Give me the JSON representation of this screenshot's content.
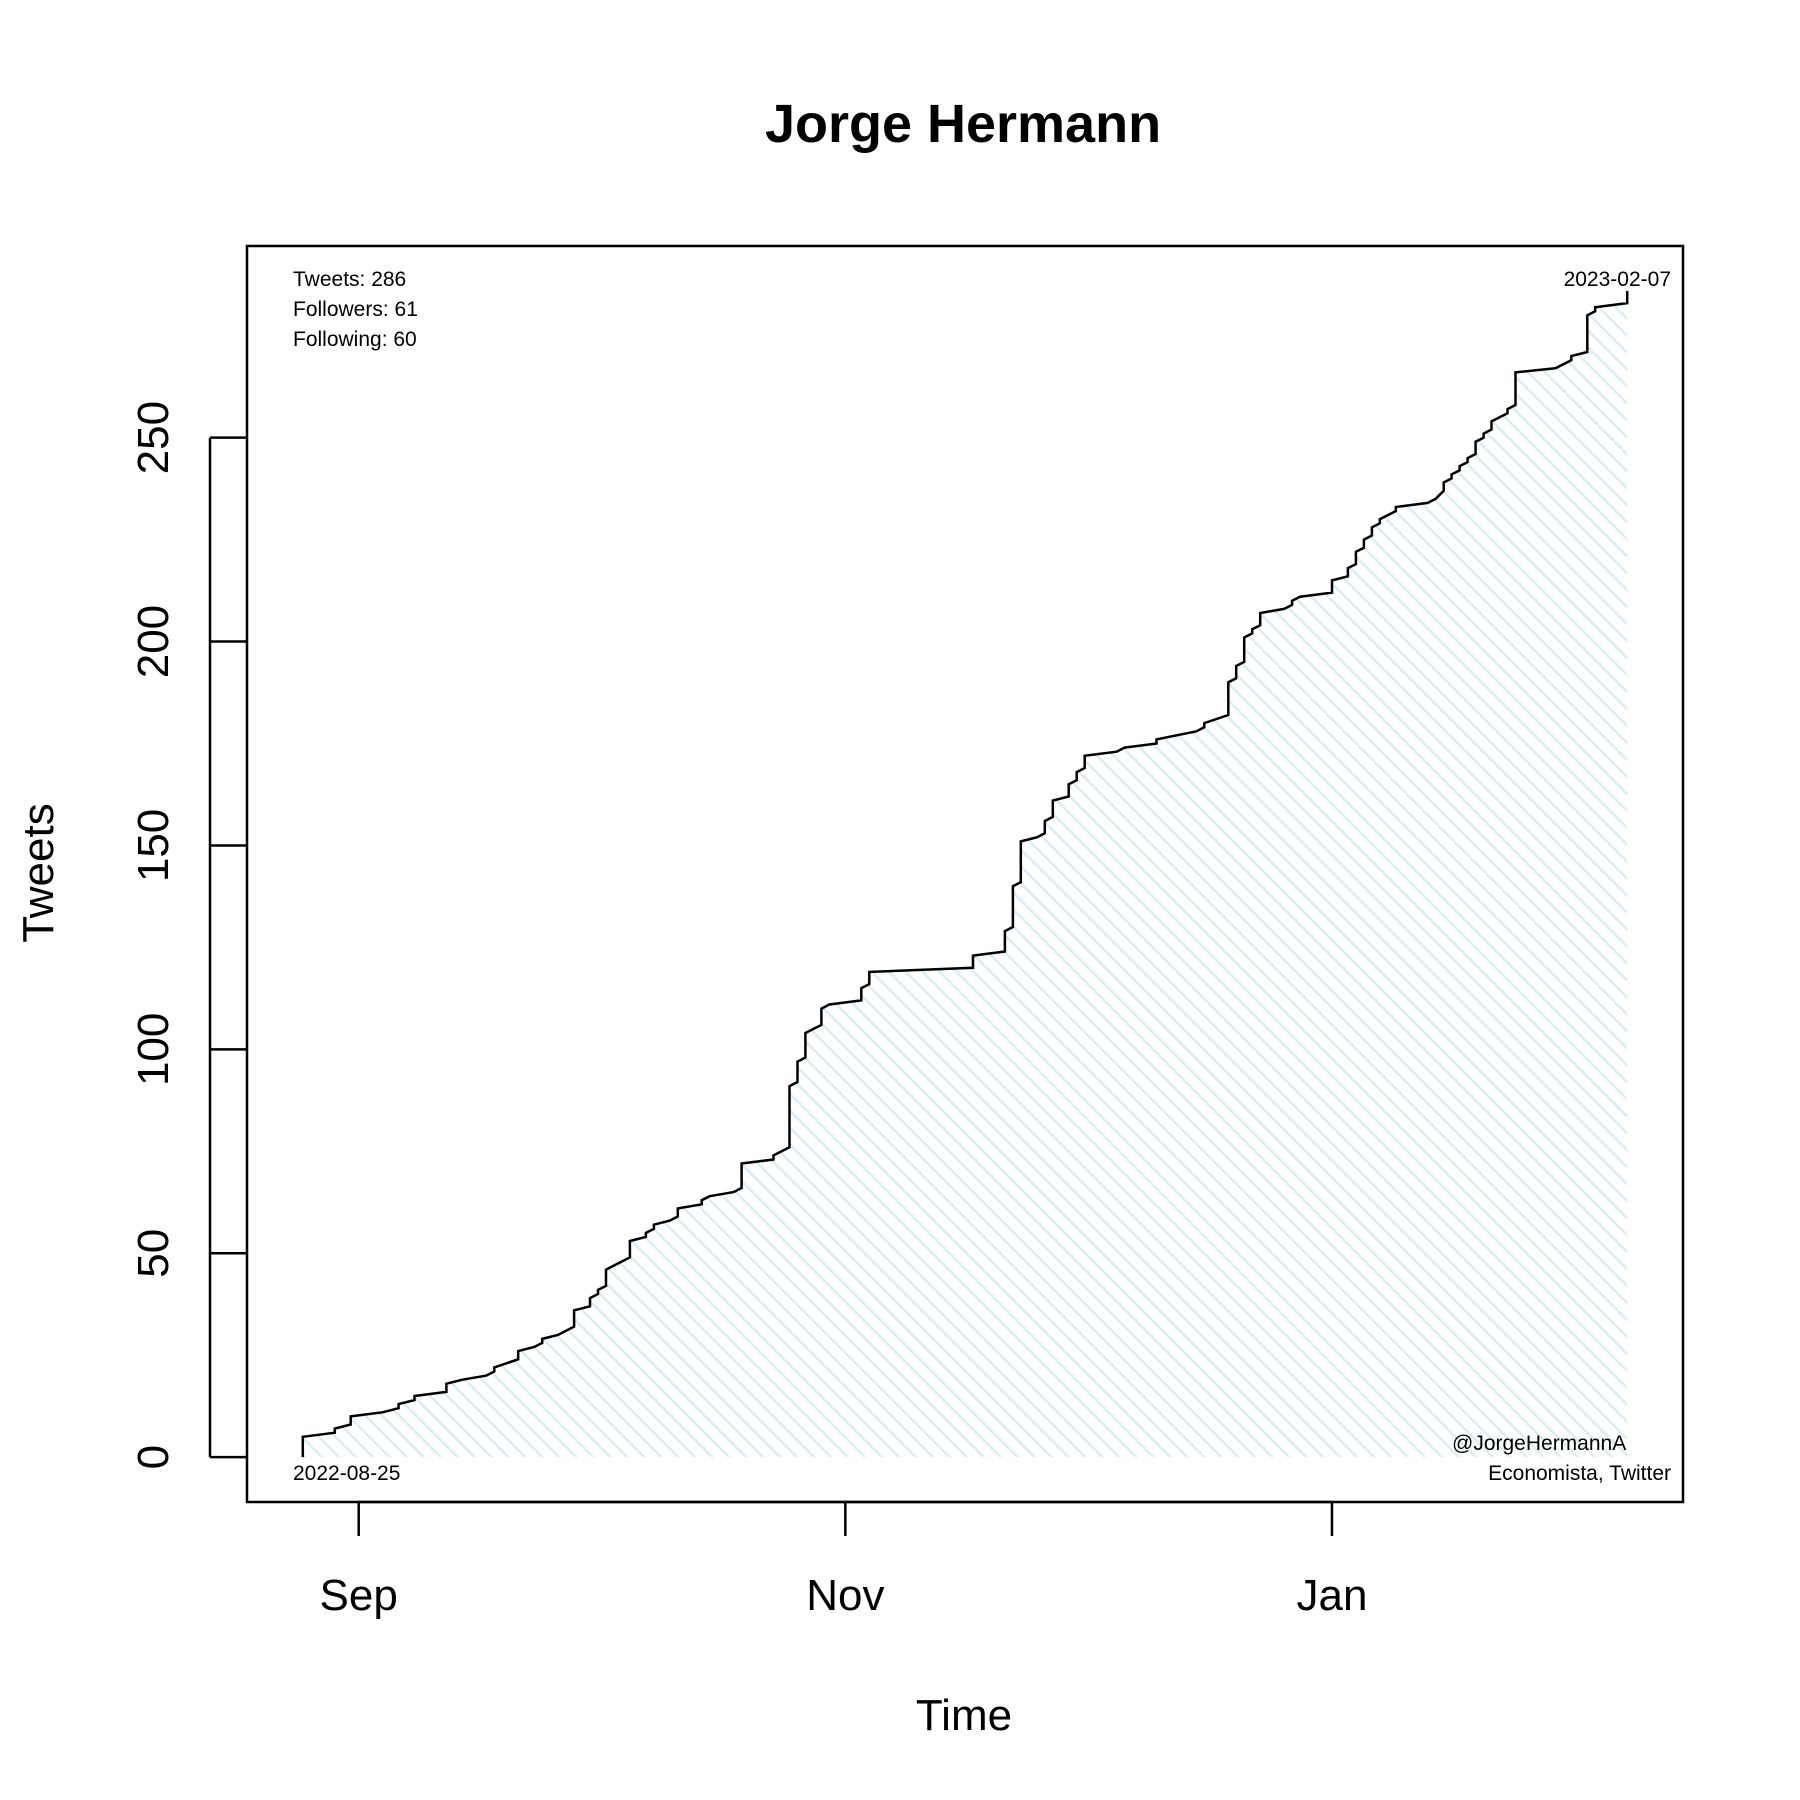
{
  "chart_data": {
    "type": "area",
    "title": "Jorge Hermann",
    "xlabel": "Time",
    "ylabel": "Tweets",
    "x_ticks": [
      {
        "date": "2022-09-01",
        "label": "Sep"
      },
      {
        "date": "2022-11-01",
        "label": "Nov"
      },
      {
        "date": "2023-01-01",
        "label": "Jan"
      }
    ],
    "y_ticks": [
      0,
      50,
      100,
      150,
      200,
      250
    ],
    "xlim": [
      "2022-08-18",
      "2023-02-14"
    ],
    "ylim": [
      -11,
      297
    ],
    "grid": false,
    "fill_color": "#dcecf4",
    "line_color": "#000000",
    "stats": {
      "tweets": "Tweets: 286",
      "followers": "Followers: 61",
      "following": "Following: 60"
    },
    "start_label": "2022-08-25",
    "end_label": "2023-02-07",
    "credit_handle": "@JorgeHermannA",
    "credit_desc": "Economista, Twitter",
    "series": [
      {
        "points": [
          [
            "2022-08-25",
            0
          ],
          [
            "2022-08-25",
            5
          ],
          [
            "2022-08-29",
            6
          ],
          [
            "2022-08-29",
            7
          ],
          [
            "2022-08-31",
            8
          ],
          [
            "2022-08-31",
            10
          ],
          [
            "2022-09-04",
            11
          ],
          [
            "2022-09-06",
            12
          ],
          [
            "2022-09-06",
            13
          ],
          [
            "2022-09-08",
            14
          ],
          [
            "2022-09-08",
            15
          ],
          [
            "2022-09-12",
            16
          ],
          [
            "2022-09-12",
            18
          ],
          [
            "2022-09-14",
            19
          ],
          [
            "2022-09-17",
            20
          ],
          [
            "2022-09-18",
            21
          ],
          [
            "2022-09-18",
            22
          ],
          [
            "2022-09-21",
            24
          ],
          [
            "2022-09-21",
            26
          ],
          [
            "2022-09-23",
            27
          ],
          [
            "2022-09-24",
            28
          ],
          [
            "2022-09-24",
            29
          ],
          [
            "2022-09-26",
            30
          ],
          [
            "2022-09-28",
            32
          ],
          [
            "2022-09-28",
            36
          ],
          [
            "2022-09-30",
            37
          ],
          [
            "2022-09-30",
            39
          ],
          [
            "2022-10-01",
            40
          ],
          [
            "2022-10-01",
            41
          ],
          [
            "2022-10-02",
            42
          ],
          [
            "2022-10-02",
            46
          ],
          [
            "2022-10-05",
            49
          ],
          [
            "2022-10-05",
            53
          ],
          [
            "2022-10-07",
            54
          ],
          [
            "2022-10-07",
            55
          ],
          [
            "2022-10-08",
            56
          ],
          [
            "2022-10-08",
            57
          ],
          [
            "2022-10-10",
            58
          ],
          [
            "2022-10-11",
            59
          ],
          [
            "2022-10-11",
            61
          ],
          [
            "2022-10-14",
            62
          ],
          [
            "2022-10-14",
            63
          ],
          [
            "2022-10-15",
            64
          ],
          [
            "2022-10-18",
            65
          ],
          [
            "2022-10-19",
            66
          ],
          [
            "2022-10-19",
            72
          ],
          [
            "2022-10-23",
            73
          ],
          [
            "2022-10-23",
            74
          ],
          [
            "2022-10-25",
            76
          ],
          [
            "2022-10-25",
            91
          ],
          [
            "2022-10-26",
            92
          ],
          [
            "2022-10-26",
            97
          ],
          [
            "2022-10-27",
            98
          ],
          [
            "2022-10-27",
            104
          ],
          [
            "2022-10-29",
            106
          ],
          [
            "2022-10-29",
            110
          ],
          [
            "2022-10-30",
            111
          ],
          [
            "2022-11-03",
            112
          ],
          [
            "2022-11-03",
            115
          ],
          [
            "2022-11-04",
            116
          ],
          [
            "2022-11-04",
            119
          ],
          [
            "2022-11-17",
            120
          ],
          [
            "2022-11-17",
            123
          ],
          [
            "2022-11-21",
            124
          ],
          [
            "2022-11-21",
            129
          ],
          [
            "2022-11-22",
            130
          ],
          [
            "2022-11-22",
            140
          ],
          [
            "2022-11-23",
            141
          ],
          [
            "2022-11-23",
            151
          ],
          [
            "2022-11-25",
            152
          ],
          [
            "2022-11-26",
            153
          ],
          [
            "2022-11-26",
            156
          ],
          [
            "2022-11-27",
            157
          ],
          [
            "2022-11-27",
            161
          ],
          [
            "2022-11-29",
            162
          ],
          [
            "2022-11-29",
            165
          ],
          [
            "2022-11-30",
            166
          ],
          [
            "2022-11-30",
            168
          ],
          [
            "2022-12-01",
            169
          ],
          [
            "2022-12-01",
            172
          ],
          [
            "2022-12-05",
            173
          ],
          [
            "2022-12-06",
            174
          ],
          [
            "2022-12-10",
            175
          ],
          [
            "2022-12-10",
            176
          ],
          [
            "2022-12-15",
            178
          ],
          [
            "2022-12-16",
            179
          ],
          [
            "2022-12-16",
            180
          ],
          [
            "2022-12-19",
            182
          ],
          [
            "2022-12-19",
            190
          ],
          [
            "2022-12-20",
            191
          ],
          [
            "2022-12-20",
            194
          ],
          [
            "2022-12-21",
            195
          ],
          [
            "2022-12-21",
            201
          ],
          [
            "2022-12-22",
            202
          ],
          [
            "2022-12-22",
            203
          ],
          [
            "2022-12-23",
            204
          ],
          [
            "2022-12-23",
            207
          ],
          [
            "2022-12-26",
            208
          ],
          [
            "2022-12-27",
            209
          ],
          [
            "2022-12-27",
            210
          ],
          [
            "2022-12-28",
            211
          ],
          [
            "2023-01-01",
            212
          ],
          [
            "2023-01-01",
            215
          ],
          [
            "2023-01-03",
            216
          ],
          [
            "2023-01-03",
            218
          ],
          [
            "2023-01-04",
            219
          ],
          [
            "2023-01-04",
            222
          ],
          [
            "2023-01-05",
            223
          ],
          [
            "2023-01-05",
            225
          ],
          [
            "2023-01-06",
            226
          ],
          [
            "2023-01-06",
            228
          ],
          [
            "2023-01-07",
            229
          ],
          [
            "2023-01-07",
            230
          ],
          [
            "2023-01-09",
            232
          ],
          [
            "2023-01-09",
            233
          ],
          [
            "2023-01-13",
            234
          ],
          [
            "2023-01-14",
            235
          ],
          [
            "2023-01-15",
            237
          ],
          [
            "2023-01-15",
            239
          ],
          [
            "2023-01-16",
            240
          ],
          [
            "2023-01-16",
            241
          ],
          [
            "2023-01-17",
            242
          ],
          [
            "2023-01-17",
            243
          ],
          [
            "2023-01-18",
            244
          ],
          [
            "2023-01-18",
            245
          ],
          [
            "2023-01-19",
            246
          ],
          [
            "2023-01-19",
            249
          ],
          [
            "2023-01-20",
            250
          ],
          [
            "2023-01-20",
            251
          ],
          [
            "2023-01-21",
            252
          ],
          [
            "2023-01-21",
            254
          ],
          [
            "2023-01-23",
            256
          ],
          [
            "2023-01-23",
            257
          ],
          [
            "2023-01-24",
            258
          ],
          [
            "2023-01-24",
            266
          ],
          [
            "2023-01-29",
            267
          ],
          [
            "2023-01-31",
            269
          ],
          [
            "2023-01-31",
            270
          ],
          [
            "2023-02-02",
            271
          ],
          [
            "2023-02-02",
            280
          ],
          [
            "2023-02-03",
            281
          ],
          [
            "2023-02-03",
            282
          ],
          [
            "2023-02-07",
            283
          ],
          [
            "2023-02-07",
            286
          ]
        ]
      }
    ]
  }
}
